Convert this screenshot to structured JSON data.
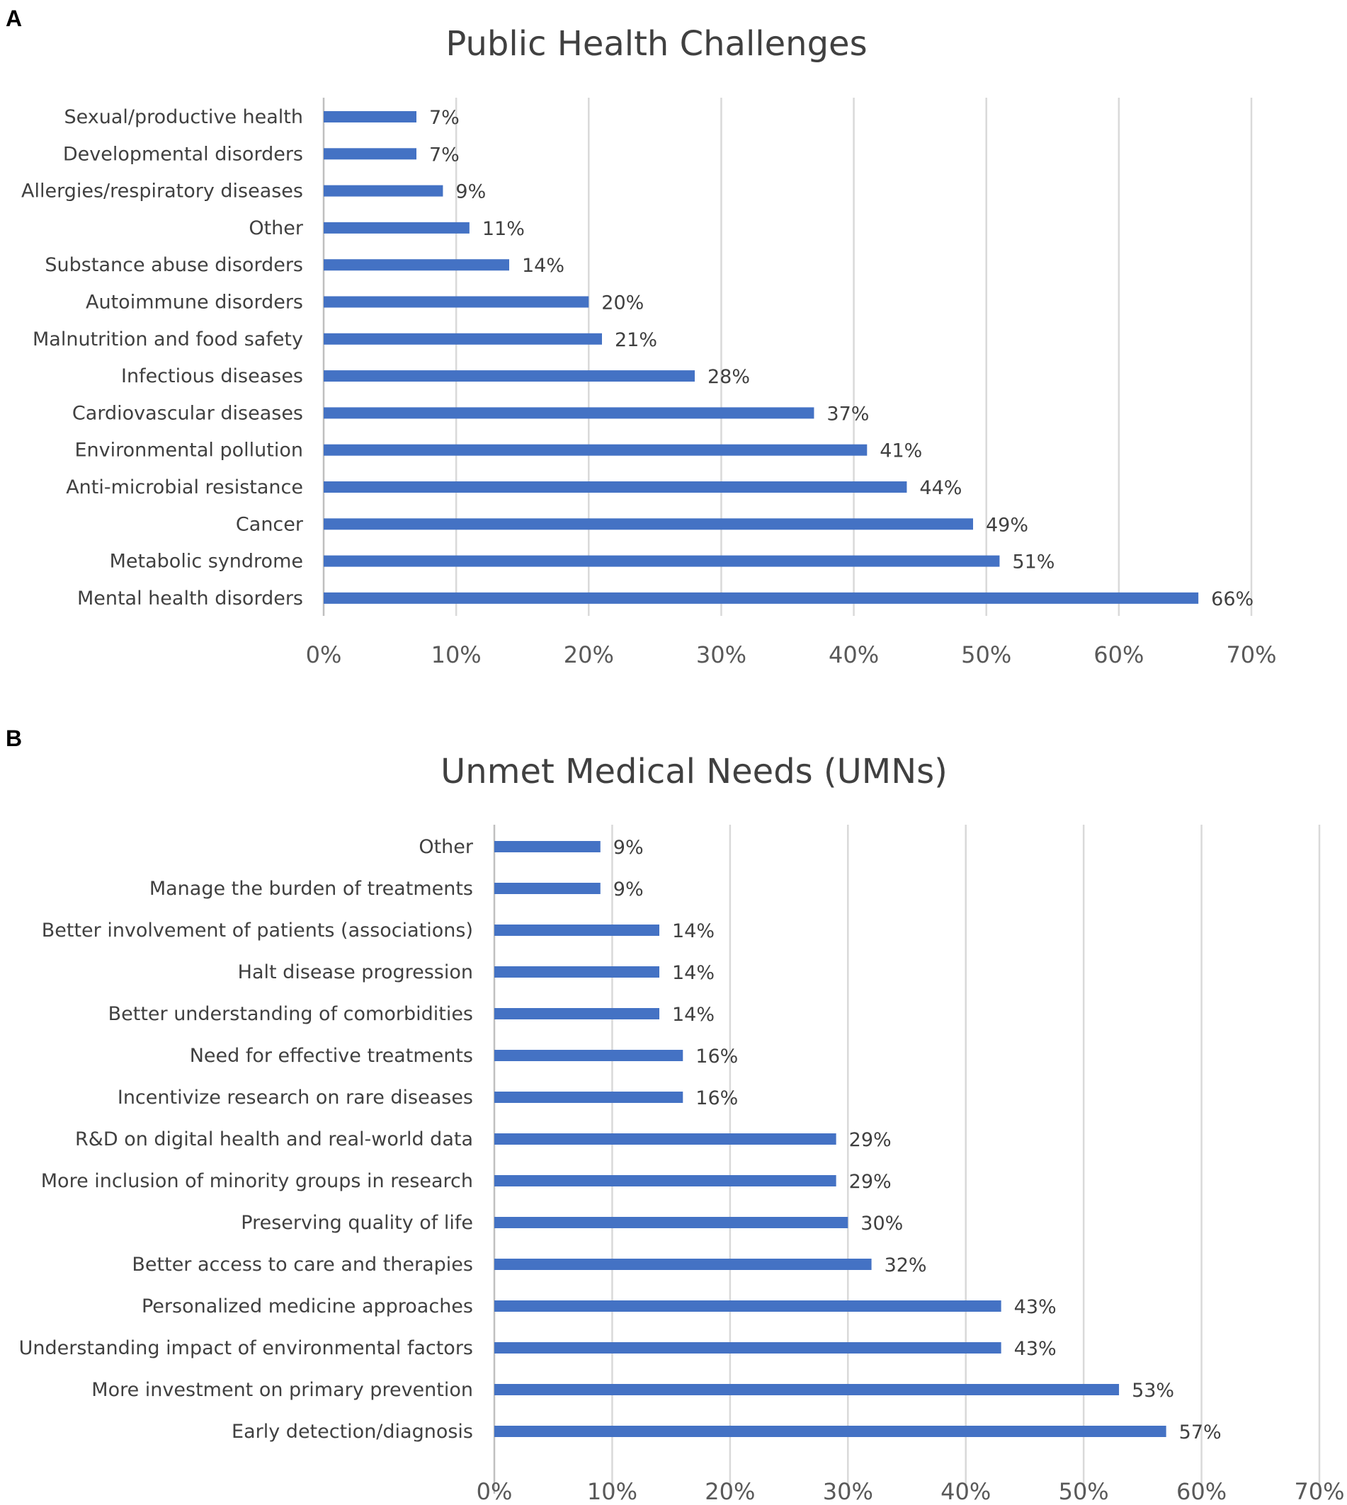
{
  "panels": [
    {
      "letter": "A"
    },
    {
      "letter": "B"
    }
  ],
  "colors": {
    "bar": "#4472C4",
    "grid": "#D9D9D9",
    "text": "#404040"
  },
  "chart_data": [
    {
      "type": "bar",
      "orientation": "horizontal",
      "title": "Public Health Challenges",
      "xlim": [
        0,
        70
      ],
      "grid": true,
      "tick_labels": [
        "0%",
        "10%",
        "20%",
        "30%",
        "40%",
        "50%",
        "60%",
        "70%"
      ],
      "categories": [
        "Sexual/productive health",
        "Developmental disorders",
        "Allergies/respiratory diseases",
        "Other",
        "Substance abuse disorders",
        "Autoimmune disorders",
        "Malnutrition and food safety",
        "Infectious diseases",
        "Cardiovascular diseases",
        "Environmental pollution",
        "Anti-microbial resistance",
        "Cancer",
        "Metabolic syndrome",
        "Mental health disorders"
      ],
      "values": [
        7,
        7,
        9,
        11,
        14,
        20,
        21,
        28,
        37,
        41,
        44,
        49,
        51,
        66
      ],
      "labels": [
        "7%",
        "7%",
        "9%",
        "11%",
        "14%",
        "20%",
        "21%",
        "28%",
        "37%",
        "41%",
        "44%",
        "49%",
        "51%",
        "66%"
      ]
    },
    {
      "type": "bar",
      "orientation": "horizontal",
      "title": "Unmet Medical Needs (UMNs)",
      "xlim": [
        0,
        70
      ],
      "grid": true,
      "tick_labels": [
        "0%",
        "10%",
        "20%",
        "30%",
        "40%",
        "50%",
        "60%",
        "70%"
      ],
      "categories": [
        "Other",
        "Manage the burden of treatments",
        "Better involvement of patients (associations)",
        "Halt disease progression",
        "Better understanding of comorbidities",
        "Need for effective treatments",
        "Incentivize research on rare diseases",
        "R&D on digital health and real-world data",
        "More inclusion of minority groups in research",
        "Preserving quality of life",
        "Better access to care and therapies",
        "Personalized medicine approaches",
        "Understanding impact of environmental factors",
        "More investment on primary prevention",
        "Early detection/diagnosis"
      ],
      "values": [
        9,
        9,
        14,
        14,
        14,
        16,
        16,
        29,
        29,
        30,
        32,
        43,
        43,
        53,
        57
      ],
      "labels": [
        "9%",
        "9%",
        "14%",
        "14%",
        "14%",
        "16%",
        "16%",
        "29%",
        "29%",
        "30%",
        "32%",
        "43%",
        "43%",
        "53%",
        "57%"
      ]
    }
  ]
}
